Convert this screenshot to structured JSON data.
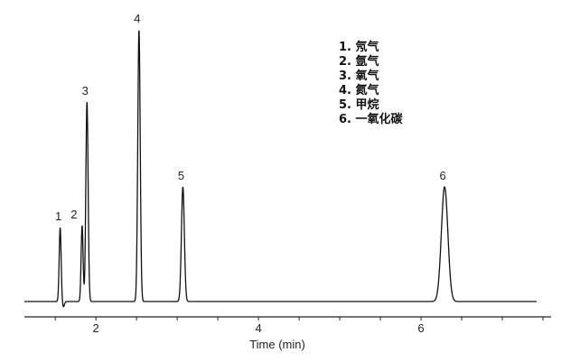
{
  "chart_data": {
    "type": "line",
    "title": "",
    "xlabel": "Time (min)",
    "ylabel": "",
    "xlim": [
      1.12,
      7.6
    ],
    "x_ticks": [
      2,
      4,
      6
    ],
    "x_minor_tick_step": 0.5,
    "grid": false,
    "legend_placement": "top-right",
    "line_color": "#111111",
    "peaks": [
      {
        "label": "1",
        "rt": 1.56,
        "height": 82,
        "width": 0.012
      },
      {
        "label": "2",
        "rt": 1.83,
        "height": 84,
        "width": 0.012
      },
      {
        "label": "3",
        "rt": 1.89,
        "height": 221,
        "width": 0.014
      },
      {
        "label": "4",
        "rt": 2.53,
        "height": 301,
        "width": 0.015
      },
      {
        "label": "5",
        "rt": 3.07,
        "height": 127,
        "width": 0.018
      },
      {
        "label": "6",
        "rt": 6.29,
        "height": 127,
        "width": 0.04
      }
    ],
    "legend": [
      "1. 氖气",
      "2. 氩气",
      "3. 氧气",
      "4. 氮气",
      "5. 甲烷",
      "6. 一氧化碳"
    ]
  }
}
